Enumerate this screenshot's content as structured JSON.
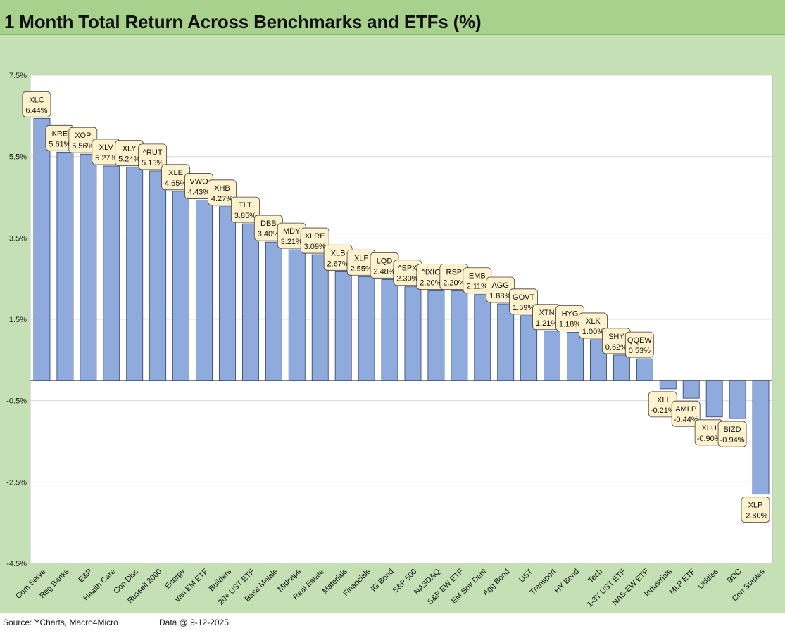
{
  "title": "1 Month Total Return Across Benchmarks and ETFs (%)",
  "footer": {
    "source": "Source: YCharts, Macro4Micro",
    "data_date": "Data @ 9-12-2025"
  },
  "colors": {
    "title_bg": "#a9d18e",
    "chart_bg": "#c5e0b4",
    "plot_bg": "#ffffff",
    "bar_fill": "#8faadc",
    "bar_stroke": "#2f3f6b",
    "label_fill": "#fff2cc"
  },
  "chart_data": {
    "type": "bar",
    "title": "1 Month Total Return Across Benchmarks and ETFs (%)",
    "ylim": [
      -4.5,
      7.5
    ],
    "yticks": [
      "7.5%",
      "5.5%",
      "3.5%",
      "1.5%",
      "-0.5%",
      "-2.5%",
      "-4.5%"
    ],
    "ytick_values": [
      7.5,
      5.5,
      3.5,
      1.5,
      -0.5,
      -2.5,
      -4.5
    ],
    "grid": true,
    "categories": [
      "Com Serve",
      "Reg Banks",
      "E&P",
      "Health Care",
      "Con Disc",
      "Russell 2000",
      "Energy",
      "Van EM ETF",
      "Builders",
      "20+ UST ETF",
      "Base Metals",
      "Midcaps",
      "Real Estate",
      "Materials",
      "Financials",
      "IG Bond",
      "S&P 500",
      "NASDAQ",
      "S&P EW ETF",
      "EM Sov Debt",
      "Agg Bond",
      "UST",
      "Transport",
      "HY Bond",
      "Tech",
      "1-3Y UST ETF",
      "NAS-EW ETF",
      "Industrials",
      "MLP ETF",
      "Utilities",
      "BDC",
      "Con Staples"
    ],
    "tickers": [
      "XLC",
      "KRE",
      "XOP",
      "XLV",
      "XLY",
      "^RUT",
      "XLE",
      "VWO",
      "XHB",
      "TLT",
      "DBB",
      "MDY",
      "XLRE",
      "XLB",
      "XLF",
      "LQD",
      "^SPX",
      "^IXIC",
      "RSP",
      "EMB",
      "AGG",
      "GOVT",
      "XTN",
      "HYG",
      "XLK",
      "SHY",
      "QQEW",
      "XLI",
      "AMLP",
      "XLU",
      "BIZD",
      "XLP"
    ],
    "value_labels": [
      "6.44%",
      "5.61%",
      "5.56%",
      "5.27%",
      "5.24%",
      "5.15%",
      "4.65%",
      "4.43%",
      "4.27%",
      "3.85%",
      "3.40%",
      "3.21%",
      "3.09%",
      "2.67%",
      "2.55%",
      "2.48%",
      "2.30%",
      "2.20%",
      "2.20%",
      "2.11%",
      "1.88%",
      "1.59%",
      "1.21%",
      "1.18%",
      "1.00%",
      "0.62%",
      "0.53%",
      "-0.21%",
      "-0.44%",
      "-0.90%",
      "-0.94%",
      "-2.80%"
    ],
    "values": [
      6.44,
      5.61,
      5.56,
      5.27,
      5.24,
      5.15,
      4.65,
      4.43,
      4.27,
      3.85,
      3.4,
      3.21,
      3.09,
      2.67,
      2.55,
      2.48,
      2.3,
      2.2,
      2.2,
      2.11,
      1.88,
      1.59,
      1.21,
      1.18,
      1.0,
      0.62,
      0.53,
      -0.21,
      -0.44,
      -0.9,
      -0.94,
      -2.8
    ]
  }
}
